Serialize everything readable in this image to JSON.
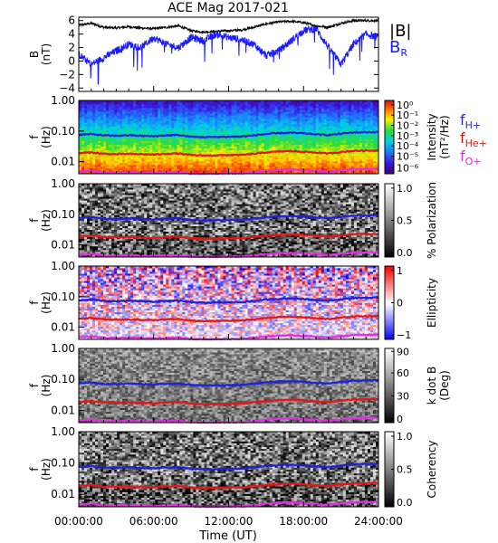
{
  "title": "ACE Mag 2017-021",
  "x_axis": {
    "label": "Time (UT)",
    "ticks": [
      "00:00:00",
      "06:00:00",
      "12:00:00",
      "18:00:00",
      "24:00:00"
    ]
  },
  "legend_top": {
    "b_mag": "|B|",
    "b_r_base": "B",
    "b_r_sub": "R"
  },
  "legend_gyro": [
    {
      "base": "f",
      "sub": "H+",
      "color": "#2a2ad8"
    },
    {
      "base": "f",
      "sub": "He+",
      "color": "#d81818"
    },
    {
      "base": "f",
      "sub": "O+",
      "color": "#e030e0"
    }
  ],
  "colorbars": {
    "intensity": {
      "label": "Intensity",
      "units": "(nT²/Hz)",
      "ticks": [
        "10⁰",
        "10⁻¹",
        "10⁻²",
        "10⁻³",
        "10⁻⁴",
        "10⁻⁵",
        "10⁻⁶"
      ]
    },
    "polarization": {
      "label": "% Polarization",
      "ticks": [
        "1.0",
        "0.5",
        "0.0"
      ]
    },
    "ellipticity": {
      "label": "Ellipticity",
      "ticks": [
        "1",
        "0",
        "−1"
      ]
    },
    "kdotb": {
      "label": "k dot B",
      "units": "(Deg)",
      "ticks": [
        "90",
        "60",
        "30",
        "0"
      ]
    },
    "coherency": {
      "label": "Coherency",
      "ticks": [
        "1.0",
        "0.5",
        "0.0"
      ]
    }
  },
  "chart_data": [
    {
      "type": "line",
      "ylabel": "B",
      "yunits": "(nT)",
      "ylim": [
        -4.5,
        6.5
      ],
      "xlim_hours": [
        0,
        24
      ],
      "yticks": [
        "6",
        "4",
        "2",
        "0",
        "−2",
        "−4"
      ],
      "series": [
        {
          "name": "|B|",
          "color": "#000000",
          "x": [
            0,
            1,
            2,
            3,
            4,
            5,
            6,
            7,
            8,
            9,
            10,
            11,
            12,
            13,
            14,
            15,
            16,
            17,
            18,
            19,
            20,
            21,
            22,
            23,
            24
          ],
          "y": [
            5.3,
            5.6,
            5.0,
            4.9,
            5.1,
            4.9,
            4.8,
            5.0,
            5.2,
            4.5,
            4.3,
            4.4,
            4.5,
            4.6,
            5.0,
            5.5,
            5.8,
            5.9,
            5.7,
            5.2,
            5.0,
            5.6,
            6.0,
            6.0,
            6.0
          ]
        },
        {
          "name": "B",
          "color": "#1a1aff",
          "x": [
            0,
            1,
            2,
            3,
            4,
            5,
            6,
            7,
            8,
            9,
            10,
            11,
            12,
            13,
            14,
            15,
            16,
            17,
            18,
            19,
            20,
            21,
            22,
            23,
            24
          ],
          "y": [
            1.0,
            -0.5,
            0.5,
            1.5,
            2.5,
            2.0,
            3.5,
            2.5,
            2.0,
            3.5,
            3.0,
            4.0,
            3.5,
            3.2,
            2.5,
            0.8,
            1.5,
            3.0,
            4.5,
            4.8,
            2.0,
            -0.5,
            2.5,
            4.0,
            3.5
          ]
        }
      ]
    },
    {
      "type": "heatmap",
      "name": "intensity",
      "ylabel": "f",
      "yunits": "(Hz)",
      "yscale": "log",
      "ylim": [
        0.004,
        1.0
      ],
      "yticks": [
        "1.00",
        "0.10",
        "0.01"
      ]
    },
    {
      "type": "heatmap",
      "name": "polarization",
      "ylabel": "f",
      "yunits": "(Hz)",
      "yscale": "log",
      "ylim": [
        0.004,
        1.0
      ],
      "yticks": [
        "1.00",
        "0.10",
        "0.01"
      ]
    },
    {
      "type": "heatmap",
      "name": "ellipticity",
      "ylabel": "f",
      "yunits": "(Hz)",
      "yscale": "log",
      "ylim": [
        0.004,
        1.0
      ],
      "yticks": [
        "1.00",
        "0.10",
        "0.01"
      ]
    },
    {
      "type": "heatmap",
      "name": "kdotb",
      "ylabel": "f",
      "yunits": "(Hz)",
      "yscale": "log",
      "ylim": [
        0.004,
        1.0
      ],
      "yticks": [
        "1.00",
        "0.10",
        "0.01"
      ]
    },
    {
      "type": "heatmap",
      "name": "coherency",
      "ylabel": "f",
      "yunits": "(Hz)",
      "yscale": "log",
      "ylim": [
        0.004,
        1.0
      ],
      "yticks": [
        "1.00",
        "0.10",
        "0.01"
      ]
    }
  ],
  "gyrofrequency_lines": {
    "x": [
      0,
      1,
      2,
      3,
      4,
      5,
      6,
      7,
      8,
      9,
      10,
      11,
      12,
      13,
      14,
      15,
      16,
      17,
      18,
      19,
      20,
      21,
      22,
      23,
      24
    ],
    "f_H": [
      0.075,
      0.08,
      0.072,
      0.07,
      0.073,
      0.07,
      0.068,
      0.072,
      0.074,
      0.065,
      0.063,
      0.064,
      0.065,
      0.066,
      0.072,
      0.08,
      0.085,
      0.088,
      0.084,
      0.078,
      0.074,
      0.082,
      0.09,
      0.092,
      0.092
    ],
    "f_He": [
      0.019,
      0.02,
      0.018,
      0.0175,
      0.018,
      0.0175,
      0.017,
      0.018,
      0.0185,
      0.0163,
      0.0158,
      0.016,
      0.0163,
      0.0165,
      0.018,
      0.02,
      0.0212,
      0.022,
      0.021,
      0.0195,
      0.0185,
      0.0205,
      0.0225,
      0.023,
      0.023
    ],
    "f_O": [
      0.0047,
      0.005,
      0.0045,
      0.0044,
      0.0046,
      0.0044,
      0.0043,
      0.0045,
      0.0046,
      0.0041,
      0.004,
      0.004,
      0.0041,
      0.0041,
      0.0045,
      0.005,
      0.0053,
      0.0055,
      0.0052,
      0.0049,
      0.0046,
      0.0051,
      0.0056,
      0.0057,
      0.0057
    ]
  }
}
